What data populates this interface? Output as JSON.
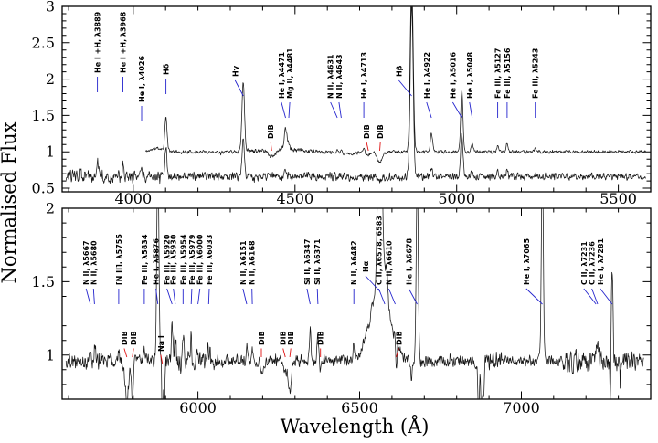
{
  "figure": {
    "ylabel": "Normalised Flux",
    "xlabel": "Wavelength (Å)"
  },
  "colors": {
    "annotation": "#2323cd",
    "dib": "#e01212",
    "spectrum": "#161616",
    "axis": "#000000",
    "background": "#ffffff"
  },
  "chart_data": {
    "type": "line",
    "title": "",
    "xlabel": "Wavelength (Å)",
    "ylabel": "Normalised Flux",
    "panels": [
      {
        "name": "blue-spectrum-panel",
        "x_range": [
          3780,
          5600
        ],
        "y_range": [
          0.45,
          3.0
        ],
        "x_major_ticks": [
          4000,
          4500,
          5000,
          5500
        ],
        "x_tick_labels": [
          "4000",
          "4500",
          "5000",
          "5500"
        ],
        "x_minor_step": 100,
        "y_major_ticks": [
          0.5,
          1.0,
          1.5,
          2.0,
          2.5,
          3.0
        ],
        "y_tick_labels": [
          "0.5",
          "1",
          "1.5",
          "2",
          "2.5",
          "3"
        ],
        "y_minor_step": 0.1,
        "annotations": [
          {
            "label": "He I +H, λ3889",
            "wl": 3889,
            "dx": 0,
            "yb": 80
          },
          {
            "label": "He I +H, λ3968",
            "wl": 3968,
            "dx": 0,
            "yb": 80
          },
          {
            "label": "He I, λ4026",
            "wl": 4026,
            "dx": 0,
            "yb": 112
          },
          {
            "label": "Hδ",
            "wl": 4101,
            "dx": 0,
            "yb": 82
          },
          {
            "label": "Hγ",
            "wl": 4340,
            "dx": -25,
            "yb": 84
          },
          {
            "label": "He I, λ4471",
            "wl": 4471,
            "dx": -13
          },
          {
            "label": "Mg II, λ4481",
            "wl": 4481,
            "dx": 3
          },
          {
            "label": "N II, λ4631",
            "wl": 4631,
            "dx": -21
          },
          {
            "label": "N II, λ4643",
            "wl": 4643,
            "dx": -7
          },
          {
            "label": "He I, λ4713",
            "wl": 4713,
            "dx": 0
          },
          {
            "label": "Hβ",
            "wl": 4861,
            "dx": -40,
            "yb": 84
          },
          {
            "label": "He I, λ4922",
            "wl": 4922,
            "dx": -15
          },
          {
            "label": "He I, λ5016",
            "wl": 5016,
            "dx": -28
          },
          {
            "label": "He I, λ5048",
            "wl": 5048,
            "dx": -8
          },
          {
            "label": "Fe III, λ5127",
            "wl": 5127,
            "dx": 0
          },
          {
            "label": "Fe III, λ5156",
            "wl": 5156,
            "dx": 0
          },
          {
            "label": "Fe III, λ5243",
            "wl": 5243,
            "dx": 0
          }
        ],
        "dib_annotations": [
          {
            "label": "DIB",
            "wl": 4428,
            "dx": -3
          },
          {
            "label": "DIB",
            "wl": 4727,
            "dx": -6
          },
          {
            "label": "DIB",
            "wl": 4762,
            "dx": 2
          }
        ],
        "traces": [
          {
            "name": "spectrum-trace-upper",
            "continuum": 1.0,
            "wl_start": 4038,
            "wl_end": 5585,
            "seed": 11,
            "noise": [
              [
                4038,
                0.014
              ],
              [
                4350,
                0.02
              ],
              [
                4560,
                0.013
              ]
            ],
            "peaks": [
              [
                4075,
                0.05,
                18
              ],
              [
                4101,
                0.45,
                3.5
              ],
              [
                4340,
                0.95,
                4
              ],
              [
                4428,
                -0.1,
                10
              ],
              [
                4450,
                0.035,
                60
              ],
              [
                4471,
                0.3,
                4
              ],
              [
                4481,
                0.08,
                2.5
              ],
              [
                4631,
                0.05,
                2.5
              ],
              [
                4643,
                0.05,
                2.5
              ],
              [
                4660,
                -0.025,
                40
              ],
              [
                4713,
                0.07,
                2.5
              ],
              [
                4727,
                -0.05,
                5
              ],
              [
                4762,
                -0.15,
                8
              ],
              [
                4861,
                2.4,
                4.5
              ],
              [
                4922,
                0.26,
                3.5
              ],
              [
                5016,
                0.85,
                3.5
              ],
              [
                5048,
                0.12,
                3
              ],
              [
                5127,
                0.08,
                3
              ],
              [
                5156,
                0.12,
                3
              ],
              [
                5243,
                0.05,
                3
              ]
            ]
          },
          {
            "name": "spectrum-trace-lower",
            "continuum": 0.66,
            "wl_start": 3792,
            "wl_end": 5585,
            "seed": 23,
            "noise": [
              [
                3792,
                0.055
              ],
              [
                4050,
                0.034
              ],
              [
                4900,
                0.028
              ]
            ],
            "peaks": [
              [
                3835,
                0.12,
                2.5
              ],
              [
                3889,
                0.25,
                2.5
              ],
              [
                3968,
                0.18,
                2.5
              ],
              [
                4026,
                0.1,
                2.5
              ],
              [
                4101,
                0.4,
                3
              ],
              [
                4340,
                0.55,
                3.5
              ],
              [
                4471,
                0.12,
                3
              ],
              [
                4762,
                -0.06,
                6
              ],
              [
                4861,
                2.4,
                4.5
              ],
              [
                4922,
                0.12,
                3
              ],
              [
                5016,
                0.6,
                3.5
              ],
              [
                5048,
                0.07,
                3
              ],
              [
                5127,
                0.06,
                3
              ],
              [
                5156,
                0.1,
                3
              ],
              [
                5243,
                0.04,
                3
              ]
            ]
          }
        ]
      },
      {
        "name": "red-spectrum-panel",
        "x_range": [
          5580,
          7400
        ],
        "y_range": [
          0.7,
          2.0
        ],
        "x_major_ticks": [
          6000,
          6500,
          7000
        ],
        "x_tick_labels": [
          "6000",
          "6500",
          "7000"
        ],
        "x_minor_step": 100,
        "y_major_ticks": [
          1.0,
          1.5,
          2.0
        ],
        "y_tick_labels": [
          "1",
          "1.5",
          "2"
        ],
        "y_minor_step": 0.1,
        "annotations": [
          {
            "label": "N II, λ5667",
            "wl": 5667,
            "dx": -13
          },
          {
            "label": "N II, λ5680",
            "wl": 5680,
            "dx": -3
          },
          {
            "label": "[N II], λ5755",
            "wl": 5755,
            "dx": 0
          },
          {
            "label": "Fe III, λ5834",
            "wl": 5834,
            "dx": 0
          },
          {
            "label": "He I, λ5876",
            "wl": 5876,
            "dx": -6
          },
          {
            "label": "Fe III, λ5920",
            "wl": 5920,
            "dx": -16
          },
          {
            "label": "Fe III, λ5930",
            "wl": 5930,
            "dx": -6
          },
          {
            "label": "Fe III, λ5954",
            "wl": 5954,
            "dx": 0
          },
          {
            "label": "Fe III, λ5979",
            "wl": 5979,
            "dx": 2
          },
          {
            "label": "Fe III, λ6000",
            "wl": 6000,
            "dx": 6
          },
          {
            "label": "Fe III, λ6033",
            "wl": 6033,
            "dx": 2
          },
          {
            "label": "N II, λ6151",
            "wl": 6151,
            "dx": -12
          },
          {
            "label": "N II, λ6168",
            "wl": 6168,
            "dx": -1
          },
          {
            "label": "Si II, λ6347",
            "wl": 6347,
            "dx": -10
          },
          {
            "label": "Si II, λ6371",
            "wl": 6371,
            "dx": -2
          },
          {
            "label": "N II, λ6482",
            "wl": 6482,
            "dx": 0
          },
          {
            "label": "Hα",
            "wl": 6563,
            "dx": -45,
            "yb": 298
          },
          {
            "label": "C II, λ6578, 6583",
            "wl": 6578,
            "dx": -19
          },
          {
            "label": "N II, λ6610",
            "wl": 6610,
            "dx": -20
          },
          {
            "label": "He I, λ6678",
            "wl": 6678,
            "dx": -26
          },
          {
            "label": "He I, λ7065",
            "wl": 7065,
            "dx": -50
          },
          {
            "label": "C II, λ7231",
            "wl": 7231,
            "dx": -38
          },
          {
            "label": "C II, λ7236",
            "wl": 7236,
            "dx": -18
          },
          {
            "label": "He I, λ7281",
            "wl": 7281,
            "dx": -37
          }
        ],
        "dib_annotations": [
          {
            "label": "DIB",
            "wl": 5780,
            "dx": -8
          },
          {
            "label": "DIB",
            "wl": 5797,
            "dx": 4
          },
          {
            "label": "Na I",
            "wl": 5890,
            "dx": -5,
            "yb": 385
          },
          {
            "label": "DIB",
            "wl": 6196,
            "dx": 0
          },
          {
            "label": "DIB",
            "wl": 6270,
            "dx": -7
          },
          {
            "label": "DIB",
            "wl": 6284,
            "dx": 3
          },
          {
            "label": "DIB",
            "wl": 6379,
            "dx": 0
          },
          {
            "label": "DIB",
            "wl": 6613,
            "dx": 8
          }
        ],
        "traces": [
          {
            "name": "spectrum-trace-red",
            "continuum": 0.96,
            "wl_start": 5592,
            "wl_end": 7378,
            "seed": 37,
            "noise": [
              [
                5592,
                0.03
              ],
              [
                5654,
                0.045
              ],
              [
                5704,
                0.027
              ],
              [
                5896,
                0.05
              ],
              [
                6056,
                0.024
              ],
              [
                6850,
                0.04
              ],
              [
                6940,
                0.022
              ],
              [
                7130,
                0.05
              ],
              [
                7320,
                0.035
              ]
            ],
            "peaks": [
              [
                5667,
                0.14,
                2.5
              ],
              [
                5680,
                0.11,
                2.5
              ],
              [
                5755,
                0.07,
                2.5
              ],
              [
                5780,
                -0.3,
                5
              ],
              [
                5797,
                -0.26,
                3
              ],
              [
                5834,
                0.07,
                2.5
              ],
              [
                5876,
                1.5,
                3
              ],
              [
                5890,
                -0.55,
                1.6
              ],
              [
                5896,
                -0.45,
                1.6
              ],
              [
                5920,
                0.2,
                2.5
              ],
              [
                5930,
                0.16,
                2.5
              ],
              [
                5954,
                0.13,
                2.5
              ],
              [
                5979,
                0.14,
                2.5
              ],
              [
                6000,
                0.12,
                2.5
              ],
              [
                6033,
                0.11,
                2.5
              ],
              [
                6151,
                0.09,
                2.5
              ],
              [
                6168,
                0.07,
                2.5
              ],
              [
                6196,
                -0.1,
                2.5
              ],
              [
                6203,
                -0.07,
                3
              ],
              [
                6270,
                -0.08,
                4
              ],
              [
                6284,
                -0.2,
                5
              ],
              [
                6347,
                0.22,
                2.5
              ],
              [
                6371,
                0.17,
                2.5
              ],
              [
                6379,
                -0.07,
                2.5
              ],
              [
                6482,
                0.11,
                2.5
              ],
              [
                6563,
                1.7,
                6
              ],
              [
                6563,
                0.5,
                30
              ],
              [
                6583,
                0.25,
                4
              ],
              [
                6610,
                0.06,
                2
              ],
              [
                6613,
                -0.2,
                2
              ],
              [
                6660,
                -0.16,
                2
              ],
              [
                6678,
                1.3,
                3
              ],
              [
                6868,
                -0.5,
                2
              ],
              [
                6877,
                -0.35,
                2.5
              ],
              [
                6884,
                -0.25,
                2
              ],
              [
                7065,
                1.4,
                3
              ],
              [
                7231,
                0.07,
                2.5
              ],
              [
                7236,
                0.09,
                2.5
              ],
              [
                7275,
                -0.28,
                1.5
              ],
              [
                7281,
                0.62,
                2.5
              ]
            ]
          }
        ]
      }
    ]
  }
}
